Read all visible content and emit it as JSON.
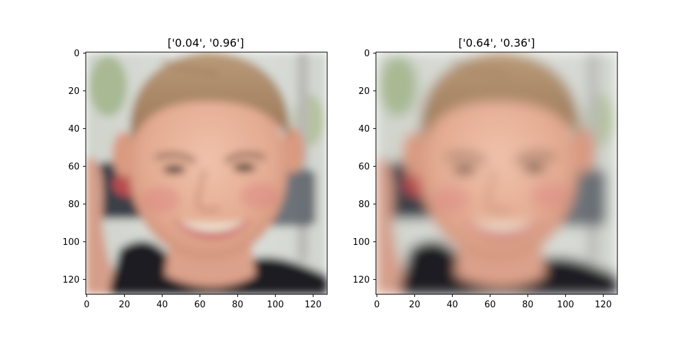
{
  "figure": {
    "panels": [
      {
        "title": "['0.04', '0.96']",
        "description_hint": "face-image-original",
        "xticks": [
          "0",
          "20",
          "40",
          "60",
          "80",
          "100",
          "120"
        ],
        "yticks": [
          "0",
          "20",
          "40",
          "60",
          "80",
          "100",
          "120"
        ]
      },
      {
        "title": "['0.64', '0.36']",
        "description_hint": "face-image-reconstruction",
        "xticks": [
          "0",
          "20",
          "40",
          "60",
          "80",
          "100",
          "120"
        ],
        "yticks": [
          "0",
          "20",
          "40",
          "60",
          "80",
          "100",
          "120"
        ]
      }
    ],
    "colors": {
      "skin": "#e2a990",
      "skin_shadow": "#c98a72",
      "hair": "#b48f6c",
      "hair_dark": "#8c6a4d",
      "background_light": "#d9dcd7",
      "background_green": "#9db184",
      "shirt": "#1e1f24",
      "car_red": "#b94b4f",
      "teeth": "#efe6d2",
      "lips": "#c9616a"
    }
  }
}
